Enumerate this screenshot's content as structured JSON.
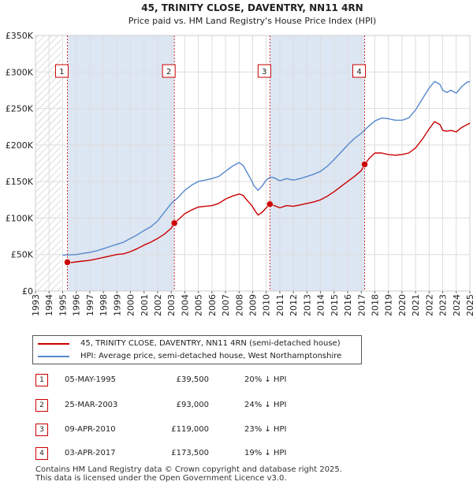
{
  "chart_data": {
    "type": "line",
    "title": "45, TRINITY CLOSE, DAVENTRY, NN11 4RN",
    "subtitle": "Price paid vs. HM Land Registry's House Price Index (HPI)",
    "xlabel": "",
    "ylabel": "",
    "xlim": [
      1993,
      2025
    ],
    "ylim": [
      0,
      350000
    ],
    "yticks": [
      0,
      50000,
      100000,
      150000,
      200000,
      250000,
      300000,
      350000
    ],
    "ytick_labels": [
      "£0",
      "£50K",
      "£100K",
      "£150K",
      "£200K",
      "£250K",
      "£300K",
      "£350K"
    ],
    "xticks": [
      1993,
      1994,
      1995,
      1996,
      1997,
      1998,
      1999,
      2000,
      2001,
      2002,
      2003,
      2004,
      2005,
      2006,
      2007,
      2008,
      2009,
      2010,
      2011,
      2012,
      2013,
      2014,
      2015,
      2016,
      2017,
      2018,
      2019,
      2020,
      2021,
      2022,
      2023,
      2024,
      2025
    ],
    "grid": true,
    "series": [
      {
        "name": "45, TRINITY CLOSE, DAVENTRY, NN11 4RN (semi-detached house)",
        "color": "#cc0000",
        "x": [
          1995.35,
          1995.6,
          1996.0,
          1996.5,
          1997.0,
          1997.5,
          1998.0,
          1998.5,
          1999.0,
          1999.5,
          2000.0,
          2000.5,
          2001.0,
          2001.5,
          2002.0,
          2002.5,
          2003.0,
          2003.23,
          2003.6,
          2004.0,
          2004.5,
          2005.0,
          2005.5,
          2006.0,
          2006.5,
          2007.0,
          2007.5,
          2008.0,
          2008.3,
          2008.6,
          2008.9,
          2009.1,
          2009.4,
          2009.7,
          2010.0,
          2010.27,
          2010.6,
          2011.0,
          2011.5,
          2012.0,
          2012.5,
          2013.0,
          2013.5,
          2014.0,
          2014.5,
          2015.0,
          2015.5,
          2016.0,
          2016.5,
          2017.0,
          2017.25,
          2017.6,
          2018.0,
          2018.5,
          2019.0,
          2019.5,
          2020.0,
          2020.5,
          2021.0,
          2021.5,
          2022.0,
          2022.4,
          2022.8,
          2023.0,
          2023.3,
          2023.6,
          2024.0,
          2024.4,
          2024.8,
          2025.0
        ],
        "y": [
          39500,
          39000,
          40000,
          41000,
          42000,
          44000,
          46000,
          48000,
          50000,
          51000,
          54000,
          58000,
          63000,
          67000,
          72000,
          78000,
          86000,
          93000,
          99000,
          106000,
          111000,
          115000,
          116000,
          117000,
          120000,
          126000,
          130000,
          133000,
          131000,
          124000,
          118000,
          112000,
          104000,
          108000,
          114000,
          119000,
          117000,
          114000,
          117000,
          116000,
          118000,
          120000,
          122000,
          125000,
          130000,
          136000,
          143000,
          150000,
          157000,
          165000,
          173500,
          182000,
          189000,
          189000,
          187000,
          186000,
          187000,
          189000,
          196000,
          208000,
          222000,
          232000,
          228000,
          220000,
          219000,
          220000,
          218000,
          224000,
          228000,
          230000
        ]
      },
      {
        "name": "HPI: Average price, semi-detached house, West Northamptonshire",
        "color": "#5588cc",
        "x": [
          1995.0,
          1995.5,
          1996.0,
          1996.5,
          1997.0,
          1997.5,
          1998.0,
          1998.5,
          1999.0,
          1999.5,
          2000.0,
          2000.5,
          2001.0,
          2001.5,
          2002.0,
          2002.5,
          2003.0,
          2003.5,
          2004.0,
          2004.5,
          2005.0,
          2005.5,
          2006.0,
          2006.5,
          2007.0,
          2007.5,
          2008.0,
          2008.3,
          2008.6,
          2008.9,
          2009.1,
          2009.4,
          2009.7,
          2010.0,
          2010.3,
          2010.6,
          2011.0,
          2011.5,
          2012.0,
          2012.5,
          2013.0,
          2013.5,
          2014.0,
          2014.5,
          2015.0,
          2015.5,
          2016.0,
          2016.5,
          2017.0,
          2017.5,
          2018.0,
          2018.5,
          2019.0,
          2019.5,
          2020.0,
          2020.5,
          2021.0,
          2021.5,
          2022.0,
          2022.4,
          2022.8,
          2023.0,
          2023.3,
          2023.6,
          2024.0,
          2024.4,
          2024.8,
          2025.0
        ],
        "y": [
          49000,
          49500,
          50000,
          51500,
          53000,
          55000,
          58000,
          61000,
          64000,
          67000,
          72000,
          77000,
          83000,
          88000,
          96000,
          108000,
          120000,
          128000,
          138000,
          145000,
          150000,
          152000,
          154000,
          157000,
          164000,
          171000,
          176000,
          172000,
          162000,
          152000,
          144000,
          138000,
          144000,
          152000,
          156000,
          155000,
          151000,
          154000,
          152000,
          154000,
          157000,
          160000,
          164000,
          171000,
          180000,
          190000,
          200000,
          209000,
          216000,
          225000,
          233000,
          237000,
          236000,
          234000,
          234000,
          237000,
          248000,
          263000,
          278000,
          287000,
          283000,
          275000,
          272000,
          275000,
          271000,
          280000,
          286000,
          287000
        ]
      }
    ],
    "sales": [
      {
        "label": "1",
        "x": 1995.35,
        "y": 39500
      },
      {
        "label": "2",
        "x": 2003.23,
        "y": 93000
      },
      {
        "label": "3",
        "x": 2010.27,
        "y": 119000
      },
      {
        "label": "4",
        "x": 2017.25,
        "y": 173500
      }
    ],
    "hatch_until": 1994.9
  },
  "legend": {
    "property_label": "45, TRINITY CLOSE, DAVENTRY, NN11 4RN (semi-detached house)",
    "hpi_label": "HPI: Average price, semi-detached house, West Northamptonshire",
    "property_color": "#cc0000",
    "hpi_color": "#5588cc"
  },
  "transactions": [
    {
      "num": "1",
      "date": "05-MAY-1995",
      "price": "£39,500",
      "hpi": "20% ↓ HPI"
    },
    {
      "num": "2",
      "date": "25-MAR-2003",
      "price": "£93,000",
      "hpi": "24% ↓ HPI"
    },
    {
      "num": "3",
      "date": "09-APR-2010",
      "price": "£119,000",
      "hpi": "23% ↓ HPI"
    },
    {
      "num": "4",
      "date": "03-APR-2017",
      "price": "£173,500",
      "hpi": "19% ↓ HPI"
    }
  ],
  "footer": {
    "line1": "Contains HM Land Registry data © Crown copyright and database right 2025.",
    "line2": "This data is licensed under the Open Government Licence v3.0."
  }
}
